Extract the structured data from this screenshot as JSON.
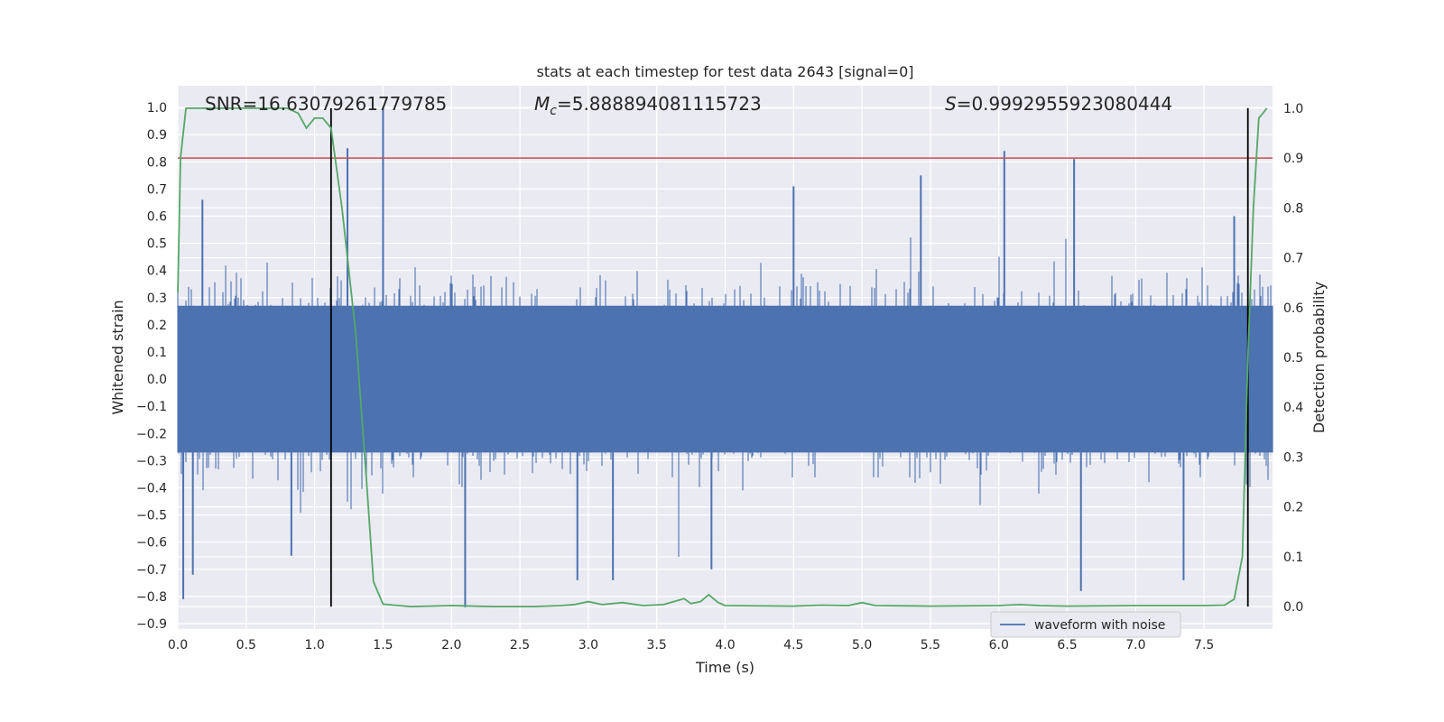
{
  "chart_data": {
    "type": "line",
    "title": "stats at each timestep for test data 2643 [signal=0]",
    "xlabel": "Time (s)",
    "ylabel": "Whitened strain",
    "y2label": "Detection probability",
    "xlim": [
      0.0,
      8.0
    ],
    "ylim": [
      -0.92,
      1.08
    ],
    "y2lim": [
      -0.045,
      1.045
    ],
    "xticks": [
      "0.0",
      "0.5",
      "1.0",
      "1.5",
      "2.0",
      "2.5",
      "3.0",
      "3.5",
      "4.0",
      "4.5",
      "5.0",
      "5.5",
      "6.0",
      "6.5",
      "7.0",
      "7.5"
    ],
    "yticks": [
      "1.0",
      "0.9",
      "0.8",
      "0.7",
      "0.6",
      "0.5",
      "0.4",
      "0.3",
      "0.2",
      "0.1",
      "0.0",
      "−0.1",
      "−0.2",
      "−0.3",
      "−0.4",
      "−0.5",
      "−0.6",
      "−0.7",
      "−0.8",
      "−0.9"
    ],
    "y2ticks": [
      "1.0",
      "0.9",
      "0.8",
      "0.7",
      "0.6",
      "0.5",
      "0.4",
      "0.3",
      "0.2",
      "0.1",
      "0.0"
    ],
    "grid": true,
    "legend_placement": "lower-right",
    "annotations": {
      "snr_prefix": "SNR=",
      "snr_value": "16.63079261779785",
      "mc_symbol": "M",
      "mc_sub": "c",
      "mc_value": "=5.888894081115723",
      "s_symbol": "S",
      "s_value": "=0.9992955923080444"
    },
    "vertical_lines_x": [
      1.12,
      7.82
    ],
    "threshold_probability": 0.9,
    "waveform": {
      "name": "waveform with noise",
      "color": "#4c72b0",
      "sample_spacing_s": 0.001,
      "typical_band": [
        -0.3,
        0.3
      ],
      "spike_samples": [
        {
          "t": 0.04,
          "v": -0.81
        },
        {
          "t": 0.11,
          "v": -0.72
        },
        {
          "t": 0.18,
          "v": 0.66
        },
        {
          "t": 0.83,
          "v": -0.65
        },
        {
          "t": 1.24,
          "v": 0.85
        },
        {
          "t": 1.5,
          "v": 1.0
        },
        {
          "t": 2.1,
          "v": -0.84
        },
        {
          "t": 2.92,
          "v": -0.74
        },
        {
          "t": 3.18,
          "v": -0.74
        },
        {
          "t": 3.9,
          "v": -0.7
        },
        {
          "t": 4.5,
          "v": 0.71
        },
        {
          "t": 5.43,
          "v": 0.75
        },
        {
          "t": 6.04,
          "v": 0.84
        },
        {
          "t": 6.55,
          "v": 0.81
        },
        {
          "t": 6.6,
          "v": -0.78
        },
        {
          "t": 7.35,
          "v": -0.74
        },
        {
          "t": 7.72,
          "v": 0.6
        }
      ]
    },
    "probability": {
      "color": "#55a868",
      "x": [
        0.0,
        0.02,
        0.06,
        0.12,
        0.2,
        0.4,
        0.6,
        0.8,
        0.88,
        0.94,
        1.0,
        1.06,
        1.12,
        1.2,
        1.3,
        1.38,
        1.43,
        1.5,
        1.7,
        2.0,
        2.3,
        2.6,
        2.8,
        2.9,
        3.0,
        3.1,
        3.25,
        3.4,
        3.55,
        3.65,
        3.7,
        3.75,
        3.82,
        3.88,
        3.95,
        4.0,
        4.5,
        4.7,
        4.9,
        5.0,
        5.1,
        5.5,
        6.0,
        6.15,
        6.3,
        6.5,
        7.0,
        7.5,
        7.65,
        7.72,
        7.78,
        7.82,
        7.86,
        7.9,
        7.96
      ],
      "y": [
        0.63,
        0.9,
        1.0,
        1.0,
        1.0,
        1.0,
        1.0,
        1.0,
        0.99,
        0.96,
        0.98,
        0.98,
        0.96,
        0.8,
        0.55,
        0.25,
        0.05,
        0.005,
        0.0,
        0.002,
        0.0,
        0.0,
        0.002,
        0.004,
        0.01,
        0.004,
        0.008,
        0.002,
        0.004,
        0.012,
        0.016,
        0.006,
        0.01,
        0.024,
        0.008,
        0.002,
        0.001,
        0.003,
        0.002,
        0.008,
        0.002,
        0.001,
        0.002,
        0.004,
        0.002,
        0.001,
        0.002,
        0.002,
        0.003,
        0.015,
        0.1,
        0.5,
        0.8,
        0.98,
        1.0
      ]
    }
  }
}
